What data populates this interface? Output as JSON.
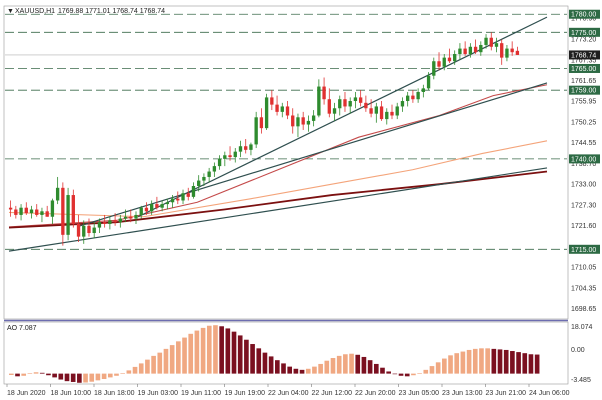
{
  "header": {
    "symbol": "XAUUSD,H1",
    "ohlc": "1769.88 1771.01 1768.74 1768.74"
  },
  "indicator": {
    "label": "AO 7.087",
    "scale_top": "18.074",
    "scale_zero": "0.00",
    "scale_bottom": "-3.485"
  },
  "colors": {
    "bull": "#2e8b2e",
    "bear": "#e03030",
    "trend": "#2f4f4f",
    "level": "#2e8b57",
    "ma_fast": "#c44a4a",
    "ma_mid": "#f4a47a",
    "ma_slow": "#7b1010",
    "ao_up": "#f0a882",
    "ao_down": "#7b1020"
  },
  "chart_data": {
    "type": "candlestick",
    "y_axis": {
      "range": [
        1696,
        1782
      ],
      "ticks": [
        "1698.65",
        "1704.35",
        "1710.05",
        "1715.00",
        "1721.60",
        "1727.30",
        "1733.00",
        "1738.70",
        "1740.00",
        "1744.55",
        "1750.25",
        "1755.95",
        "1759.00",
        "1761.65",
        "1765.00",
        "1767.35",
        "1768.74",
        "1773.20",
        "1775.00",
        "1778.90",
        "1780.00"
      ]
    },
    "x_axis": {
      "ticks": [
        "18 Jun 2020",
        "18 Jun 10:00",
        "18 Jun 18:00",
        "19 Jun 03:00",
        "19 Jun 11:00",
        "19 Jun 19:00",
        "22 Jun 04:00",
        "22 Jun 12:00",
        "22 Jun 20:00",
        "23 Jun 05:00",
        "23 Jun 13:00",
        "23 Jun 21:00",
        "24 Jun 06:00"
      ]
    },
    "levels": [
      {
        "value": 1780.0,
        "label": "1780.00"
      },
      {
        "value": 1775.0,
        "label": "1775.00"
      },
      {
        "value": 1765.0,
        "label": "1765.00"
      },
      {
        "value": 1759.0,
        "label": "1759.00"
      },
      {
        "value": 1740.0,
        "label": "1740.00"
      },
      {
        "value": 1715.0,
        "label": "1715.00"
      }
    ],
    "current_price": {
      "value": 1768.74,
      "label": "1768.74"
    },
    "candles": [
      [
        1726.5,
        1728.5,
        1724.0,
        1726.0
      ],
      [
        1726.0,
        1727.0,
        1723.5,
        1724.5
      ],
      [
        1724.5,
        1727.5,
        1723.0,
        1726.5
      ],
      [
        1726.5,
        1728.0,
        1724.5,
        1725.0
      ],
      [
        1725.0,
        1727.0,
        1723.5,
        1726.0
      ],
      [
        1726.0,
        1727.5,
        1724.0,
        1724.5
      ],
      [
        1724.5,
        1726.5,
        1722.5,
        1725.5
      ],
      [
        1725.5,
        1727.0,
        1724.0,
        1724.0
      ],
      [
        1724.0,
        1729.0,
        1722.0,
        1728.5
      ],
      [
        1728.5,
        1735.0,
        1727.5,
        1732.0
      ],
      [
        1732.0,
        1733.5,
        1716.0,
        1719.0
      ],
      [
        1719.0,
        1732.0,
        1717.5,
        1730.0
      ],
      [
        1730.0,
        1731.5,
        1721.0,
        1722.0
      ],
      [
        1722.0,
        1724.5,
        1717.0,
        1718.5
      ],
      [
        1718.5,
        1723.0,
        1716.5,
        1721.5
      ],
      [
        1721.5,
        1723.5,
        1718.5,
        1719.5
      ],
      [
        1719.5,
        1722.5,
        1718.0,
        1721.0
      ],
      [
        1721.0,
        1723.5,
        1719.5,
        1722.5
      ],
      [
        1722.5,
        1724.5,
        1721.0,
        1722.0
      ],
      [
        1722.0,
        1724.0,
        1720.5,
        1723.0
      ],
      [
        1723.0,
        1725.0,
        1721.5,
        1722.5
      ],
      [
        1722.5,
        1724.5,
        1721.0,
        1723.5
      ],
      [
        1723.5,
        1726.0,
        1722.5,
        1724.0
      ],
      [
        1724.0,
        1726.0,
        1722.5,
        1723.5
      ],
      [
        1723.5,
        1725.5,
        1722.0,
        1724.5
      ],
      [
        1724.5,
        1727.0,
        1723.5,
        1726.5
      ],
      [
        1726.5,
        1728.0,
        1724.5,
        1725.5
      ],
      [
        1725.5,
        1728.5,
        1724.5,
        1727.5
      ],
      [
        1727.5,
        1729.5,
        1726.0,
        1726.5
      ],
      [
        1726.5,
        1728.5,
        1725.5,
        1727.5
      ],
      [
        1727.5,
        1729.0,
        1726.0,
        1728.0
      ],
      [
        1728.0,
        1730.0,
        1726.5,
        1729.0
      ],
      [
        1729.0,
        1731.0,
        1727.5,
        1728.5
      ],
      [
        1728.5,
        1731.5,
        1727.5,
        1730.5
      ],
      [
        1730.5,
        1732.0,
        1728.5,
        1729.5
      ],
      [
        1729.5,
        1733.5,
        1729.0,
        1732.5
      ],
      [
        1732.5,
        1735.5,
        1731.0,
        1734.0
      ],
      [
        1734.0,
        1736.0,
        1732.5,
        1735.0
      ],
      [
        1735.0,
        1737.5,
        1733.5,
        1736.5
      ],
      [
        1736.5,
        1739.0,
        1735.0,
        1738.0
      ],
      [
        1738.0,
        1741.0,
        1737.0,
        1740.0
      ],
      [
        1740.0,
        1742.0,
        1738.0,
        1741.0
      ],
      [
        1741.0,
        1743.5,
        1739.5,
        1740.5
      ],
      [
        1740.5,
        1743.0,
        1739.0,
        1742.0
      ],
      [
        1742.0,
        1745.0,
        1740.5,
        1743.5
      ],
      [
        1743.5,
        1745.5,
        1741.5,
        1742.5
      ],
      [
        1742.5,
        1744.5,
        1741.0,
        1744.0
      ],
      [
        1744.0,
        1753.0,
        1743.0,
        1751.5
      ],
      [
        1751.5,
        1754.0,
        1747.0,
        1748.5
      ],
      [
        1748.5,
        1758.0,
        1748.0,
        1757.0
      ],
      [
        1757.0,
        1759.0,
        1753.5,
        1755.0
      ],
      [
        1755.0,
        1757.5,
        1752.0,
        1753.0
      ],
      [
        1753.0,
        1755.5,
        1751.5,
        1754.5
      ],
      [
        1754.5,
        1756.0,
        1751.0,
        1752.0
      ],
      [
        1752.0,
        1754.0,
        1747.0,
        1749.0
      ],
      [
        1749.0,
        1752.5,
        1746.0,
        1751.5
      ],
      [
        1751.5,
        1753.0,
        1748.0,
        1749.5
      ],
      [
        1749.5,
        1752.0,
        1747.5,
        1750.5
      ],
      [
        1750.5,
        1753.5,
        1749.0,
        1752.0
      ],
      [
        1752.0,
        1762.0,
        1751.5,
        1760.0
      ],
      [
        1760.0,
        1762.5,
        1755.0,
        1756.5
      ],
      [
        1756.5,
        1759.5,
        1751.5,
        1752.5
      ],
      [
        1752.5,
        1755.5,
        1750.5,
        1754.0
      ],
      [
        1754.0,
        1757.5,
        1752.0,
        1756.5
      ],
      [
        1756.5,
        1758.5,
        1753.0,
        1754.5
      ],
      [
        1754.5,
        1757.0,
        1752.5,
        1756.0
      ],
      [
        1756.0,
        1758.5,
        1754.0,
        1757.0
      ],
      [
        1757.0,
        1759.0,
        1754.5,
        1755.5
      ],
      [
        1755.5,
        1757.5,
        1753.0,
        1754.0
      ],
      [
        1754.0,
        1756.5,
        1751.5,
        1752.5
      ],
      [
        1752.5,
        1755.5,
        1750.0,
        1754.5
      ],
      [
        1754.5,
        1756.0,
        1750.5,
        1751.0
      ],
      [
        1751.0,
        1754.0,
        1749.5,
        1753.0
      ],
      [
        1753.0,
        1755.0,
        1751.0,
        1752.0
      ],
      [
        1752.0,
        1755.5,
        1751.0,
        1754.5
      ],
      [
        1754.5,
        1757.0,
        1753.0,
        1756.0
      ],
      [
        1756.0,
        1758.5,
        1754.5,
        1757.5
      ],
      [
        1757.5,
        1759.0,
        1755.5,
        1756.5
      ],
      [
        1756.5,
        1759.5,
        1755.5,
        1758.5
      ],
      [
        1758.5,
        1760.5,
        1757.0,
        1759.5
      ],
      [
        1759.5,
        1764.0,
        1759.0,
        1763.0
      ],
      [
        1763.0,
        1768.0,
        1762.0,
        1767.0
      ],
      [
        1767.0,
        1769.5,
        1764.5,
        1765.5
      ],
      [
        1765.5,
        1769.0,
        1764.5,
        1768.0
      ],
      [
        1768.0,
        1770.5,
        1766.5,
        1767.0
      ],
      [
        1767.0,
        1770.0,
        1766.0,
        1769.0
      ],
      [
        1769.0,
        1772.0,
        1767.5,
        1770.5
      ],
      [
        1770.5,
        1772.5,
        1768.5,
        1769.0
      ],
      [
        1769.0,
        1772.0,
        1768.0,
        1771.0
      ],
      [
        1771.0,
        1773.0,
        1769.0,
        1769.5
      ],
      [
        1769.5,
        1772.5,
        1768.5,
        1771.5
      ],
      [
        1771.5,
        1774.5,
        1770.5,
        1773.5
      ],
      [
        1773.5,
        1775.0,
        1770.0,
        1771.0
      ],
      [
        1771.0,
        1773.5,
        1769.5,
        1772.0
      ],
      [
        1772.0,
        1773.0,
        1766.0,
        1768.0
      ],
      [
        1768.0,
        1771.5,
        1767.0,
        1770.5
      ],
      [
        1770.5,
        1772.5,
        1768.5,
        1769.5
      ],
      [
        1769.88,
        1771.01,
        1768.74,
        1768.74
      ]
    ],
    "trend_lines": [
      {
        "name": "channel-upper",
        "p1": [
          0.24,
          1724.0
        ],
        "p2": [
          1.0,
          1779.2
        ]
      },
      {
        "name": "channel-lower",
        "p1": [
          0.13,
          1721.4
        ],
        "p2": [
          1.0,
          1761.0
        ]
      },
      {
        "name": "long-support",
        "p1": [
          0.0,
          1714.5
        ],
        "p2": [
          1.0,
          1737.5
        ]
      }
    ],
    "ma_fast": [
      [
        0.0,
        1721.2
      ],
      [
        0.2,
        1723.0
      ],
      [
        0.35,
        1728.0
      ],
      [
        0.5,
        1737.0
      ],
      [
        0.65,
        1746.0
      ],
      [
        0.8,
        1752.0
      ],
      [
        0.9,
        1757.5
      ],
      [
        1.0,
        1760.5
      ]
    ],
    "ma_mid": [
      [
        0.0,
        1725.2
      ],
      [
        0.25,
        1724.0
      ],
      [
        0.45,
        1729.0
      ],
      [
        0.6,
        1733.0
      ],
      [
        0.75,
        1737.0
      ],
      [
        0.88,
        1741.5
      ],
      [
        1.0,
        1745.0
      ]
    ],
    "ma_slow": [
      [
        0.0,
        1721.0
      ],
      [
        0.2,
        1722.5
      ],
      [
        0.4,
        1726.0
      ],
      [
        0.6,
        1730.0
      ],
      [
        0.8,
        1733.0
      ],
      [
        1.0,
        1736.5
      ]
    ],
    "ao_values": [
      -0.5,
      -1.0,
      -0.8,
      0.2,
      0.5,
      0.3,
      -0.6,
      -1.4,
      -2.2,
      -2.8,
      -3.1,
      -3.4,
      -3.3,
      -3.0,
      -2.5,
      -2.0,
      -1.4,
      -0.8,
      0.2,
      1.2,
      2.5,
      3.8,
      5.2,
      6.6,
      7.8,
      9.2,
      10.6,
      12.0,
      13.4,
      14.8,
      16.0,
      17.0,
      17.8,
      18.0,
      17.6,
      16.8,
      15.6,
      14.2,
      12.6,
      11.0,
      9.4,
      7.8,
      6.4,
      5.0,
      3.8,
      2.6,
      1.8,
      1.4,
      1.8,
      2.6,
      3.6,
      4.8,
      5.8,
      6.6,
      7.2,
      7.4,
      7.0,
      6.2,
      5.0,
      3.6,
      2.2,
      0.8,
      -0.2,
      -0.8,
      -1.0,
      -0.6,
      0.2,
      1.4,
      2.8,
      4.2,
      5.6,
      6.8,
      7.6,
      8.2,
      8.8,
      9.2,
      9.4,
      9.4,
      9.2,
      9.0,
      8.8,
      8.4,
      8.0,
      7.6,
      7.2,
      7.087
    ]
  }
}
